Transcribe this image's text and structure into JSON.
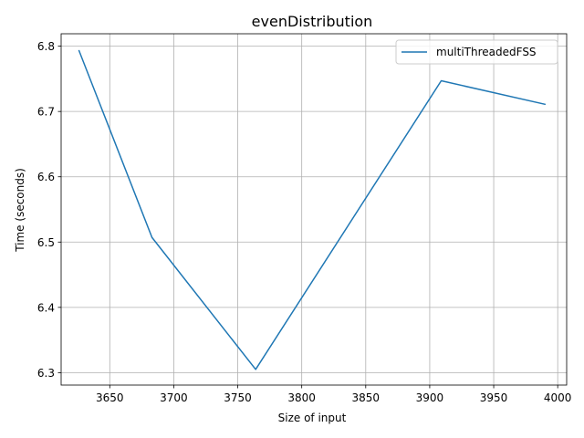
{
  "chart_data": {
    "type": "line",
    "title": "evenDistribution",
    "xlabel": "Size of input",
    "ylabel": "Time (seconds)",
    "xlim": [
      3612,
      4007
    ],
    "ylim": [
      6.281,
      6.819
    ],
    "xticks": [
      3650,
      3700,
      3750,
      3800,
      3850,
      3900,
      3950,
      4000
    ],
    "yticks": [
      6.3,
      6.4,
      6.5,
      6.6,
      6.7,
      6.8
    ],
    "xtick_labels": [
      "3650",
      "3700",
      "3750",
      "3800",
      "3850",
      "3900",
      "3950",
      "4000"
    ],
    "ytick_labels": [
      "6.3",
      "6.4",
      "6.5",
      "6.6",
      "6.7",
      "6.8"
    ],
    "grid": true,
    "legend_position": "top-right",
    "series": [
      {
        "name": "multiThreadedFSS",
        "color": "#1f77b4",
        "x": [
          3626,
          3683,
          3764,
          3909,
          3990
        ],
        "y": [
          6.793,
          6.507,
          6.305,
          6.747,
          6.711
        ]
      }
    ]
  }
}
